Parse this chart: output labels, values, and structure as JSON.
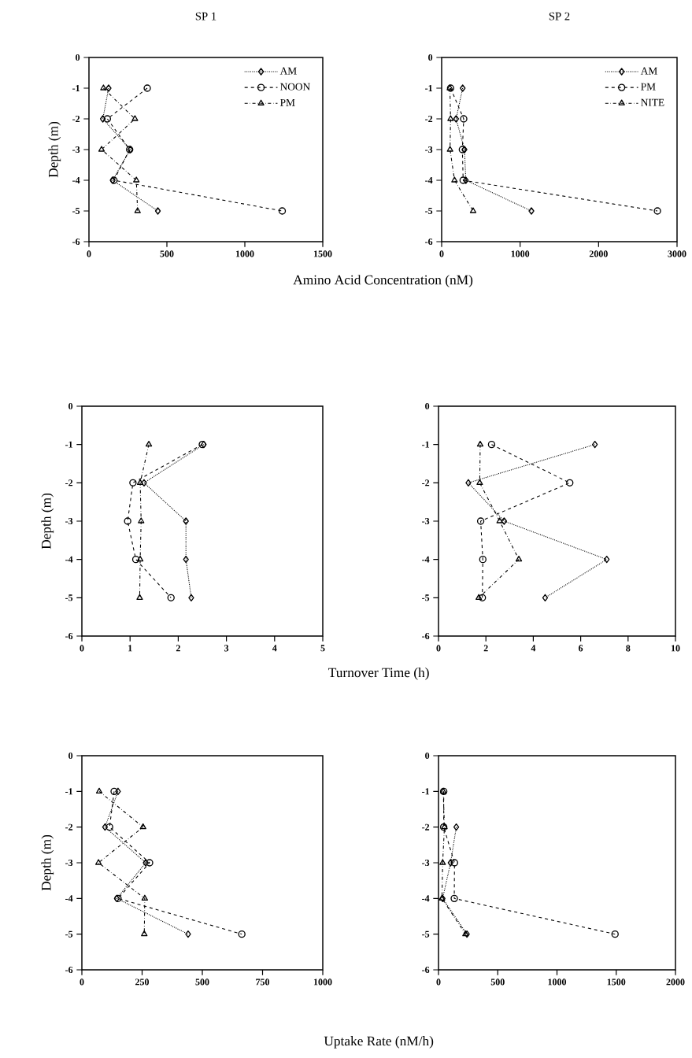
{
  "chart_data": [
    {
      "type": "line",
      "title": "SP 1",
      "ylabel": "Depth (m)",
      "xlim": [
        0,
        1500
      ],
      "xticks": [
        0,
        500,
        1000,
        1500
      ],
      "ylim": [
        -6,
        0
      ],
      "yticks": [
        0,
        -1,
        -2,
        -3,
        -4,
        -5,
        -6
      ],
      "legend": "top right",
      "series": [
        {
          "name": "AM",
          "color": "#000000",
          "marker": "diamond",
          "line_style": "dotted",
          "x": [
            126,
            89,
            265,
            152,
            442
          ],
          "values": [
            -1,
            -2,
            -3,
            -4,
            -5
          ]
        },
        {
          "name": "NOON",
          "color": "#000000",
          "marker": "circle",
          "line_style": "dashed",
          "x": [
            374,
            118,
            261,
            160,
            1240
          ],
          "values": [
            -1,
            -2,
            -3,
            -4,
            -5
          ]
        },
        {
          "name": "PM",
          "color": "#000000",
          "marker": "triangle",
          "line_style": "dashdot",
          "x": [
            93,
            295,
            81,
            304,
            312
          ],
          "values": [
            -1,
            -2,
            -3,
            -4,
            -5
          ]
        }
      ]
    },
    {
      "type": "line",
      "title": "SP 2",
      "xlabel": "Amino Acid Concentration (nM)",
      "xlim": [
        0,
        3000
      ],
      "xticks": [
        0,
        1000,
        2000,
        3000
      ],
      "ylim": [
        -6,
        0
      ],
      "yticks": [
        0,
        -1,
        -2,
        -3,
        -4,
        -5,
        -6
      ],
      "legend": "top right",
      "series": [
        {
          "name": "AM",
          "color": "#000000",
          "marker": "diamond",
          "line_style": "dotted",
          "x": [
            268,
            184,
            291,
            308,
            1144
          ],
          "values": [
            -1,
            -2,
            -3,
            -4,
            -5
          ]
        },
        {
          "name": "PM",
          "color": "#000000",
          "marker": "circle",
          "line_style": "dashed",
          "x": [
            114,
            281,
            264,
            274,
            2750
          ],
          "values": [
            -1,
            -2,
            -3,
            -4,
            -5
          ]
        },
        {
          "name": "NITE",
          "color": "#000000",
          "marker": "triangle",
          "line_style": "dashdot",
          "x": [
            105,
            114,
            107,
            164,
            401
          ],
          "values": [
            -1,
            -2,
            -3,
            -4,
            -5
          ]
        }
      ]
    },
    {
      "type": "line",
      "ylabel": "Depth (m)",
      "xlim": [
        0,
        5
      ],
      "xticks": [
        0,
        1,
        2,
        3,
        4,
        5
      ],
      "ylim": [
        -6,
        0
      ],
      "yticks": [
        0,
        -1,
        -2,
        -3,
        -4,
        -5,
        -6
      ],
      "series": [
        {
          "color": "#000000",
          "marker": "diamond",
          "line_style": "dotted",
          "x": [
            2.53,
            1.29,
            2.16,
            2.16,
            2.27
          ],
          "values": [
            -1,
            -2,
            -3,
            -4,
            -5
          ]
        },
        {
          "color": "#000000",
          "marker": "circle",
          "line_style": "dashed",
          "x": [
            2.5,
            1.06,
            0.95,
            1.12,
            1.85
          ],
          "values": [
            -1,
            -2,
            -3,
            -4,
            -5
          ]
        },
        {
          "color": "#000000",
          "marker": "triangle",
          "line_style": "dashdot",
          "x": [
            1.39,
            1.21,
            1.23,
            1.21,
            1.2
          ],
          "values": [
            -1,
            -2,
            -3,
            -4,
            -5
          ]
        }
      ]
    },
    {
      "type": "line",
      "xlabel": "Turnover Time (h)",
      "xlim": [
        0,
        10
      ],
      "xticks": [
        0,
        2,
        4,
        6,
        8,
        10
      ],
      "ylim": [
        -6,
        0
      ],
      "yticks": [
        0,
        -1,
        -2,
        -3,
        -4,
        -5,
        -6
      ],
      "series": [
        {
          "color": "#000000",
          "marker": "diamond",
          "line_style": "dotted",
          "x": [
            6.6,
            1.26,
            2.77,
            7.1,
            4.5
          ],
          "values": [
            -1,
            -2,
            -3,
            -4,
            -5
          ]
        },
        {
          "color": "#000000",
          "marker": "circle",
          "line_style": "dashed",
          "x": [
            2.24,
            5.54,
            1.78,
            1.87,
            1.85
          ],
          "values": [
            -1,
            -2,
            -3,
            -4,
            -5
          ]
        },
        {
          "color": "#000000",
          "marker": "triangle",
          "line_style": "dashdot",
          "x": [
            1.76,
            1.74,
            2.58,
            3.39,
            1.7
          ],
          "values": [
            -1,
            -2,
            -3,
            -4,
            -5
          ]
        }
      ]
    },
    {
      "type": "line",
      "ylabel": "Depth (m)",
      "xlim": [
        0,
        1000
      ],
      "xticks": [
        0,
        250,
        500,
        750,
        1000
      ],
      "ylim": [
        -6,
        0
      ],
      "yticks": [
        0,
        -1,
        -2,
        -3,
        -4,
        -5,
        -6
      ],
      "series": [
        {
          "color": "#000000",
          "marker": "diamond",
          "line_style": "dotted",
          "x": [
            150,
            96,
            265,
            145,
            441
          ],
          "values": [
            -1,
            -2,
            -3,
            -4,
            -5
          ]
        },
        {
          "color": "#000000",
          "marker": "circle",
          "line_style": "dashed",
          "x": [
            134,
            115,
            281,
            150,
            664
          ],
          "values": [
            -1,
            -2,
            -3,
            -4,
            -5
          ]
        },
        {
          "color": "#000000",
          "marker": "triangle",
          "line_style": "dashdot",
          "x": [
            72,
            254,
            69,
            261,
            259
          ],
          "values": [
            -1,
            -2,
            -3,
            -4,
            -5
          ]
        }
      ]
    },
    {
      "type": "line",
      "xlabel": "Uptake Rate (nM/h)",
      "xlim": [
        0,
        2000
      ],
      "xticks": [
        0,
        500,
        1000,
        1500,
        2000
      ],
      "ylim": [
        -6,
        0
      ],
      "yticks": [
        0,
        -1,
        -2,
        -3,
        -4,
        -5,
        -6
      ],
      "series": [
        {
          "color": "#000000",
          "marker": "diamond",
          "line_style": "dotted",
          "x": [
            null,
            150,
            102,
            35,
            240
          ],
          "values": [
            null,
            -2,
            -3,
            -4,
            -5
          ]
        },
        {
          "color": "#000000",
          "marker": "circle",
          "line_style": "dashed",
          "x": [
            44,
            44,
            135,
            133,
            1490
          ],
          "values": [
            -1,
            -2,
            -3,
            -4,
            -5
          ]
        },
        {
          "color": "#000000",
          "marker": "triangle",
          "line_style": "dashdot",
          "x": [
            40,
            50,
            35,
            29,
            228
          ],
          "values": [
            -1,
            -2,
            -3,
            -4,
            -5
          ]
        }
      ]
    }
  ]
}
